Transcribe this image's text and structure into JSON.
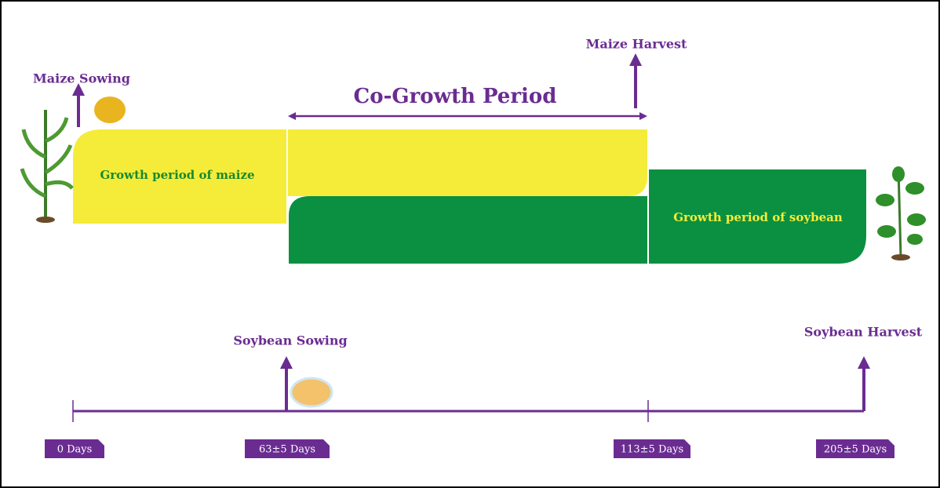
{
  "events": {
    "maize_sowing": "Maize Sowing",
    "maize_harvest": "Maize Harvest",
    "soybean_sowing": "Soybean Sowing",
    "soybean_harvest": "Soybean Harvest"
  },
  "periods": {
    "co_growth": "Co-Growth Period",
    "maize": "Growth period of maize",
    "soybean": "Growth period of soybean"
  },
  "timeline": [
    "0 Days",
    "63±5 Days",
    "113±5 Days",
    "205±5 Days"
  ]
}
